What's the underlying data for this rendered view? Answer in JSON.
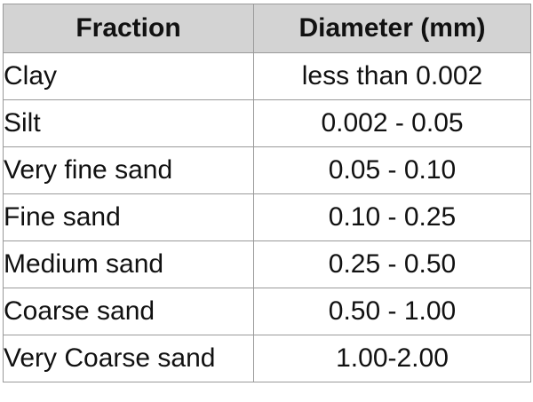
{
  "table": {
    "headers": [
      "Fraction",
      "Diameter (mm)"
    ],
    "rows": [
      {
        "fraction": "Clay",
        "diameter": "less than 0.002"
      },
      {
        "fraction": "Silt",
        "diameter": "0.002 - 0.05"
      },
      {
        "fraction": "Very fine sand",
        "diameter": "0.05 - 0.10"
      },
      {
        "fraction": "Fine sand",
        "diameter": "0.10 - 0.25"
      },
      {
        "fraction": "Medium sand",
        "diameter": "0.25 - 0.50"
      },
      {
        "fraction": "Coarse sand",
        "diameter": "0.50 - 1.00"
      },
      {
        "fraction": "Very Coarse sand",
        "diameter": "1.00-2.00"
      }
    ]
  },
  "colors": {
    "header_background": "#d3d3d3",
    "grid_lines": "#9a9a9a",
    "text": "#111111"
  }
}
